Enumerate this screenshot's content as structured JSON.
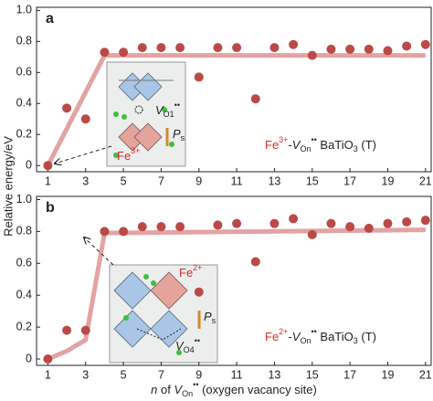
{
  "chart_data": [
    {
      "type": "scatter",
      "panel": "a",
      "x": [
        1,
        2,
        3,
        4,
        5,
        6,
        7,
        8,
        9,
        10,
        11,
        12,
        13,
        14,
        15,
        16,
        17,
        18,
        19,
        20,
        21
      ],
      "series": [
        {
          "color": "#b94a48",
          "values": [
            0,
            0.37,
            0.3,
            0.73,
            0.73,
            0.76,
            0.76,
            0.76,
            0.57,
            0.76,
            0.76,
            0.43,
            0.76,
            0.78,
            0.71,
            0.75,
            0.75,
            0.75,
            0.74,
            0.77,
            0.78
          ]
        }
      ],
      "fit_line": {
        "color": "#e3a3a3",
        "x": [
          1,
          4,
          21
        ],
        "values": [
          0,
          0.71,
          0.71
        ]
      },
      "xlim": [
        0.4,
        21.3
      ],
      "ylim": [
        -0.04,
        1.02
      ],
      "xticks": [
        1,
        3,
        5,
        7,
        9,
        11,
        13,
        15,
        17,
        19,
        21
      ],
      "yticks": [
        0,
        0.2,
        0.4,
        0.6,
        {
          "value": 1,
          "label": "1.0"
        },
        0.8
      ],
      "annotation": [
        "Fe",
        "3+",
        "-",
        "V",
        "On",
        "••",
        " BaTiO",
        "3",
        " (T)"
      ],
      "inset_labels": [
        "V",
        "O1",
        "••",
        "Fe",
        "3+",
        "P",
        "s"
      ]
    },
    {
      "type": "scatter",
      "panel": "b",
      "x": [
        1,
        2,
        3,
        4,
        5,
        6,
        7,
        8,
        9,
        10,
        11,
        12,
        13,
        14,
        15,
        16,
        17,
        18,
        19,
        20,
        21
      ],
      "series": [
        {
          "color": "#b94a48",
          "values": [
            0,
            0.18,
            0.18,
            0.8,
            0.8,
            0.83,
            0.83,
            0.83,
            0.42,
            0.84,
            0.85,
            0.61,
            0.85,
            0.88,
            0.78,
            0.85,
            0.83,
            0.82,
            0.85,
            0.86,
            0.87
          ]
        }
      ],
      "fit_line": {
        "color": "#e3a3a3",
        "x": [
          1,
          2,
          3,
          4,
          21
        ],
        "values": [
          0,
          0.05,
          0.12,
          0.79,
          0.81
        ]
      },
      "xlim": [
        0.4,
        21.3
      ],
      "ylim": [
        -0.04,
        1.02
      ],
      "xticks": [
        1,
        3,
        5,
        7,
        9,
        11,
        13,
        15,
        17,
        19,
        21
      ],
      "yticks": [
        0,
        0.2,
        0.4,
        0.6,
        0.8,
        {
          "value": 1,
          "label": "1.0"
        }
      ],
      "annotation": [
        "Fe",
        "2+",
        "-",
        "V",
        "On",
        "••",
        " BaTiO",
        "3",
        " (T)"
      ],
      "inset_labels": [
        "Fe",
        "2+",
        "P",
        "s",
        "V",
        "O4",
        "••"
      ]
    }
  ],
  "ylabel": "Relative energy/eV",
  "xlabel": [
    "n",
    " of ",
    "V",
    "On",
    "••",
    " (oxygen vacancy site)"
  ]
}
